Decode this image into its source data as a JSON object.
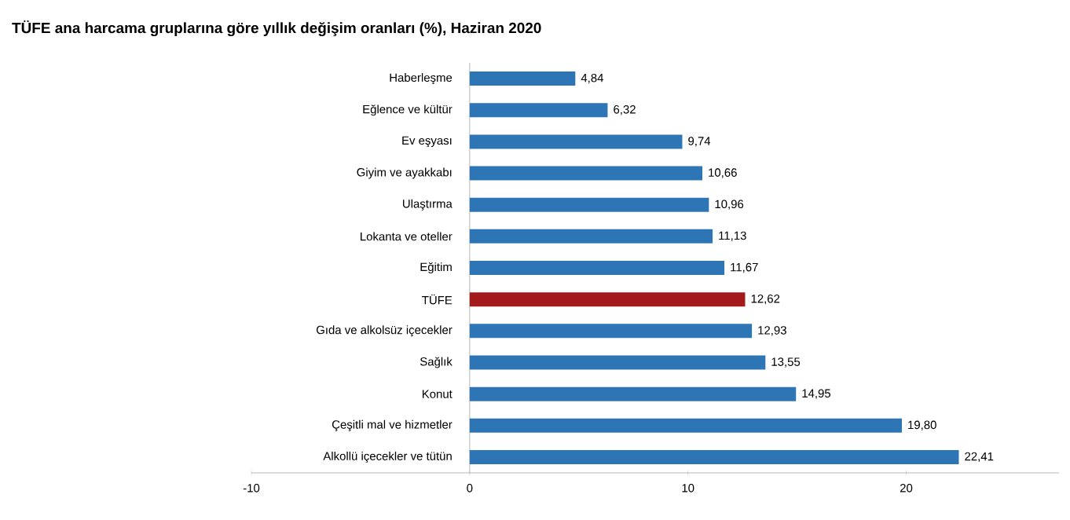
{
  "chart_data": {
    "type": "bar",
    "orientation": "horizontal",
    "title": "TÜFE ana harcama gruplarına göre yıllık değişim oranları (%), Haziran 2020",
    "categories": [
      "Haberleşme",
      "Eğlence ve kültür",
      "Ev eşyası",
      "Giyim ve ayakkabı",
      "Ulaştırma",
      "Lokanta ve oteller",
      "Eğitim",
      "TÜFE",
      "Gıda ve alkolsüz içecekler",
      "Sağlık",
      "Konut",
      "Çeşitli mal ve hizmetler",
      "Alkollü içecekler ve tütün"
    ],
    "values": [
      4.84,
      6.32,
      9.74,
      10.66,
      10.96,
      11.13,
      11.67,
      12.62,
      12.93,
      13.55,
      14.95,
      19.8,
      22.41
    ],
    "value_labels": [
      "4,84",
      "6,32",
      "9,74",
      "10,66",
      "10,96",
      "11,13",
      "11,67",
      "12,62",
      "12,93",
      "13,55",
      "14,95",
      "19,80",
      "22,41"
    ],
    "colors": [
      "#2e75b6",
      "#2e75b6",
      "#2e75b6",
      "#2e75b6",
      "#2e75b6",
      "#2e75b6",
      "#2e75b6",
      "#a31a1a",
      "#2e75b6",
      "#2e75b6",
      "#2e75b6",
      "#2e75b6",
      "#2e75b6"
    ],
    "xlim": [
      -10,
      27
    ],
    "xticks": [
      -10,
      0,
      10,
      20
    ]
  }
}
